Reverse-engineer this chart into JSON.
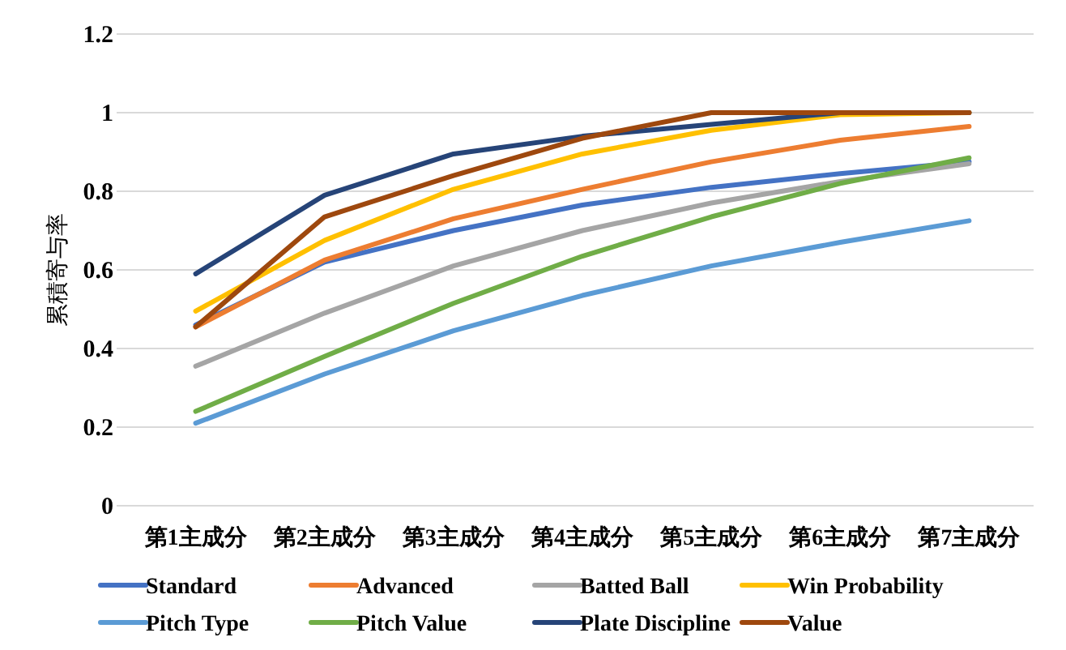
{
  "chart_data": {
    "type": "line",
    "ylabel": "累積寄与率",
    "categories": [
      "第1主成分",
      "第2主成分",
      "第3主成分",
      "第4主成分",
      "第5主成分",
      "第6主成分",
      "第7主成分"
    ],
    "ylim": [
      0,
      1.2
    ],
    "yticks": [
      0,
      0.2,
      0.4,
      0.6,
      0.8,
      1,
      1.2
    ],
    "grid": "y",
    "legend": "bottom",
    "marker": "none",
    "line_style": "solid",
    "series": [
      {
        "name": "Standard",
        "color": "#4472c4",
        "values": [
          0.46,
          0.62,
          0.7,
          0.765,
          0.81,
          0.845,
          0.875
        ]
      },
      {
        "name": "Advanced",
        "color": "#ed7d31",
        "values": [
          0.455,
          0.625,
          0.73,
          0.805,
          0.875,
          0.93,
          0.965
        ]
      },
      {
        "name": "Batted Ball",
        "color": "#a5a5a5",
        "values": [
          0.355,
          0.49,
          0.61,
          0.7,
          0.77,
          0.825,
          0.87
        ]
      },
      {
        "name": "Win Probability",
        "color": "#ffc000",
        "values": [
          0.495,
          0.675,
          0.805,
          0.895,
          0.955,
          0.995,
          1.0
        ]
      },
      {
        "name": "Pitch Type",
        "color": "#5b9bd5",
        "values": [
          0.21,
          0.335,
          0.445,
          0.535,
          0.61,
          0.67,
          0.725
        ]
      },
      {
        "name": "Pitch Value",
        "color": "#70ad47",
        "values": [
          0.24,
          0.38,
          0.515,
          0.635,
          0.735,
          0.82,
          0.885
        ]
      },
      {
        "name": "Plate Discipline",
        "color": "#264478",
        "values": [
          0.59,
          0.79,
          0.895,
          0.94,
          0.97,
          1.0,
          1.0
        ]
      },
      {
        "name": "Value",
        "color": "#9e480e",
        "values": [
          0.455,
          0.735,
          0.84,
          0.935,
          1.0,
          1.0,
          1.0
        ]
      }
    ]
  }
}
